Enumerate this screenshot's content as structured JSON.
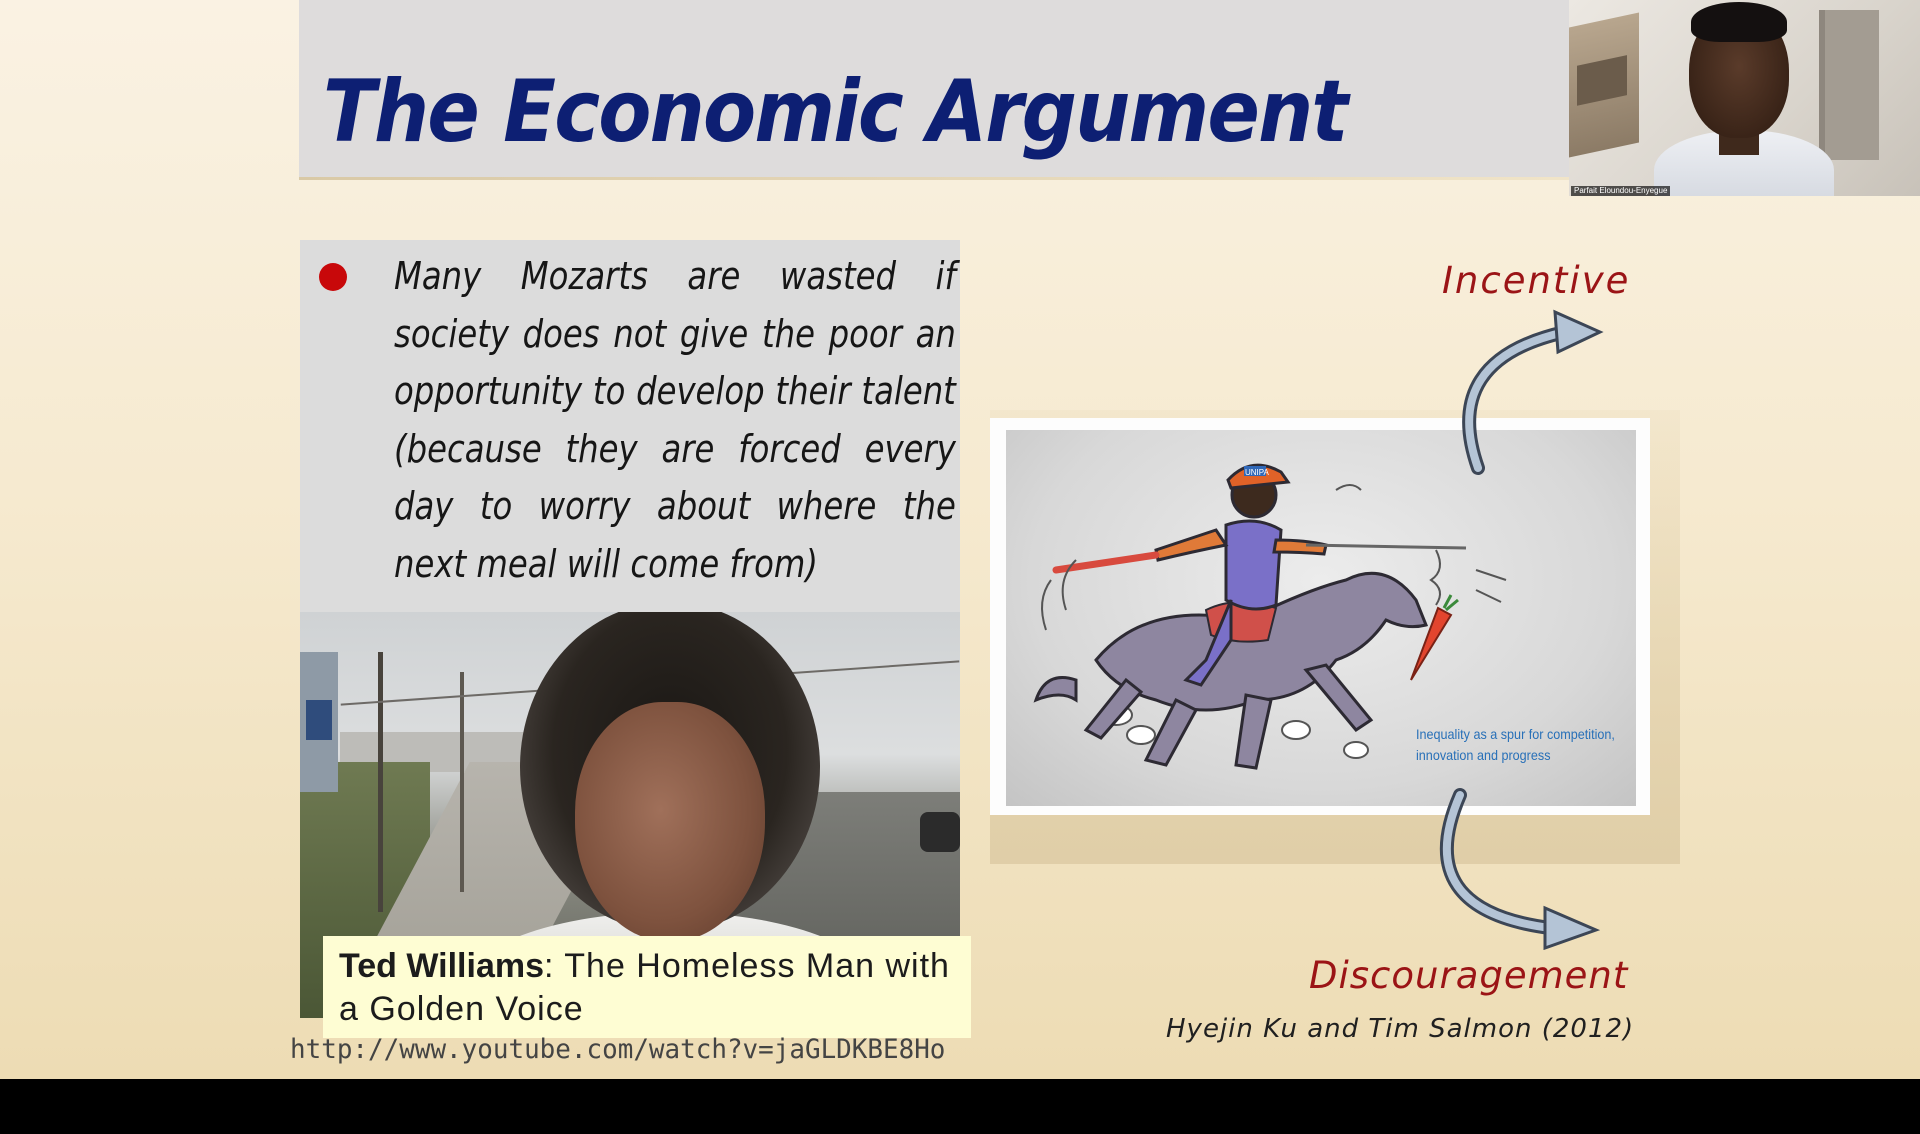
{
  "slide": {
    "title": "The Economic Argument",
    "bullet": {
      "text": "Many Mozarts are wasted if society does not give the poor an opportunity to develop their talent (because they are forced every day to worry about where the next meal will come from)",
      "bullet_color": "#c8080a"
    },
    "photo": {
      "caption_name": "Ted Williams",
      "caption_rest": ": The Homeless Man with a Golden Voice",
      "link": "http://www.youtube.com/watch?v=jaGLDKBE8Ho"
    },
    "cartoon": {
      "cap_label": "UNIPA",
      "caption_line1": "Inequality as a spur for competition,",
      "caption_line2": "innovation and progress"
    },
    "incentive_label": "Incentive",
    "discouragement_label": "Discouragement",
    "citation": "Hyejin Ku and Tim Salmon (2012)",
    "colors": {
      "title": "#0d1f73",
      "accent_red": "#9b1416",
      "caption_bg": "#fefdd3",
      "title_band": "#dedcdc"
    }
  },
  "webcam": {
    "participant_name": "Parfait Eloundou-Enyegue"
  }
}
